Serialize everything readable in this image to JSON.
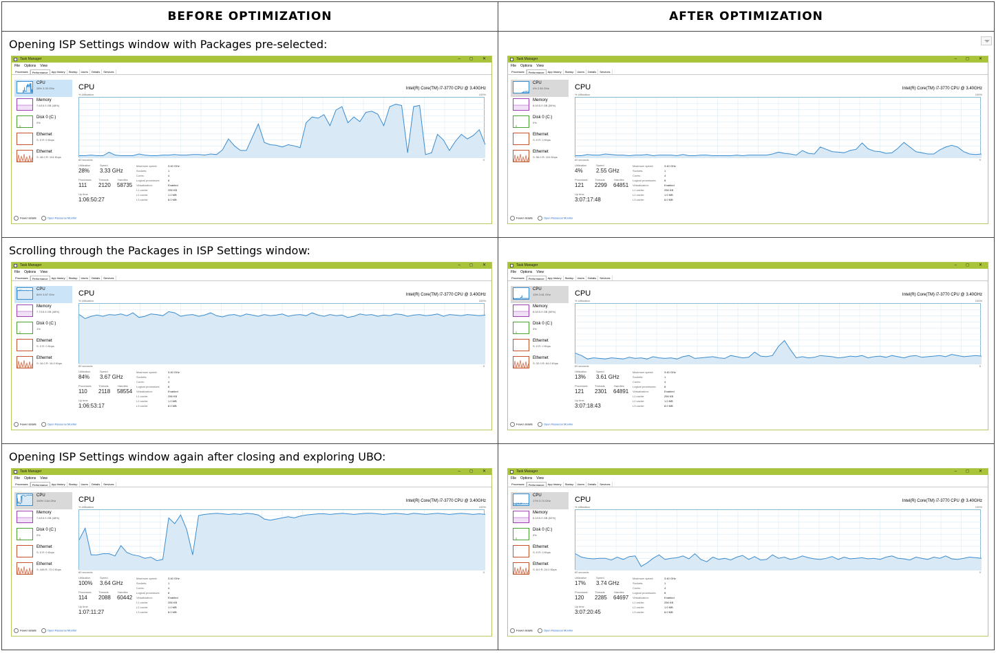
{
  "headers": {
    "before": "BEFORE OPTIMIZATION",
    "after": "AFTER OPTIMIZATION"
  },
  "colors": {
    "titlebar": "#a9c33a",
    "cpu_line": "#3a8cd0",
    "cpu_fill": "#d9e9f5",
    "memory": "#9b3fb5",
    "disk": "#4aa12f",
    "ethernet": "#c2542c"
  },
  "taskmanager": {
    "title": "Task Manager",
    "window_controls": [
      "–",
      "◻",
      "✕"
    ],
    "menu": [
      "File",
      "Options",
      "View"
    ],
    "tabs": [
      "Processes",
      "Performance",
      "App history",
      "Startup",
      "Users",
      "Details",
      "Services"
    ],
    "cpu_heading": "CPU",
    "processor": "Intel(R) Core(TM) i7-3770 CPU @ 3.40GHz",
    "util_label": "% Utilization",
    "pct_max": "100%",
    "time_label": "60 seconds",
    "zero": "0",
    "side_names": {
      "cpu": "CPU",
      "memory": "Memory",
      "disk": "Disk 0 (C:)",
      "eth1": "Ethernet",
      "eth2": "Ethernet"
    },
    "labels": {
      "utilization": "Utilization",
      "speed": "Speed",
      "processes": "Processes",
      "threads": "Threads",
      "handles": "Handles",
      "uptime": "Up time"
    },
    "specs": [
      {
        "k": "Maximum speed:",
        "v": "3.40 GHz"
      },
      {
        "k": "Sockets:",
        "v": "1"
      },
      {
        "k": "Cores:",
        "v": "4"
      },
      {
        "k": "Logical processors:",
        "v": "8"
      },
      {
        "k": "Virtualization:",
        "v": "Enabled"
      },
      {
        "k": "L1 cache:",
        "v": "256 KB"
      },
      {
        "k": "L2 cache:",
        "v": "1.0 MB"
      },
      {
        "k": "L3 cache:",
        "v": "8.0 MB"
      }
    ],
    "fewer_details": "Fewer details",
    "resource_monitor": "Open Resource Monitor"
  },
  "rows": [
    {
      "caption": "Opening ISP Settings window with Packages pre-selected:",
      "before": {
        "sidebar": {
          "cpu": "28% 3.33 GHz",
          "memory": "7.6/15.9 GB (48%)",
          "disk": "0%",
          "eth1": "S: 0 R: 0 Kbps",
          "eth2": "S: 48.0 R: 104 Kbps"
        },
        "stats": {
          "utilization": "28%",
          "speed": "3.33 GHz",
          "processes": "111",
          "threads": "2120",
          "handles": "58735",
          "uptime": "1:06:50:27"
        },
        "cpu_history": [
          3,
          3,
          4,
          3,
          3,
          9,
          4,
          3,
          3,
          3,
          6,
          4,
          3,
          3,
          4,
          4,
          5,
          4,
          4,
          5,
          5,
          4,
          6,
          5,
          13,
          32,
          20,
          12,
          12,
          35,
          58,
          26,
          22,
          21,
          18,
          22,
          20,
          17,
          60,
          70,
          68,
          74,
          55,
          82,
          88,
          60,
          70,
          62,
          78,
          80,
          75,
          55,
          88,
          92,
          90,
          8,
          88,
          90,
          5,
          8,
          40,
          30,
          12,
          28,
          40,
          32,
          38,
          48,
          22
        ],
        "cpu_sel_style": "blue"
      },
      "after": {
        "sidebar": {
          "cpu": "4% 2.55 GHz",
          "memory": "8.0/15.9 GB (50%)",
          "disk": "0%",
          "eth1": "S: 0 R: 0 Kbps",
          "eth2": "S: 56.0 R: 104 Kbps"
        },
        "stats": {
          "utilization": "4%",
          "speed": "2.55 GHz",
          "processes": "121",
          "threads": "2299",
          "handles": "64851",
          "uptime": "3:07:17:48"
        },
        "cpu_history": [
          3,
          3,
          5,
          4,
          4,
          6,
          5,
          4,
          4,
          3,
          4,
          4,
          5,
          3,
          4,
          4,
          4,
          3,
          5,
          3,
          3,
          4,
          4,
          3,
          3,
          3,
          3,
          4,
          3,
          4,
          4,
          4,
          4,
          6,
          9,
          7,
          6,
          4,
          12,
          7,
          6,
          18,
          14,
          10,
          9,
          8,
          12,
          14,
          25,
          15,
          11,
          10,
          7,
          8,
          16,
          26,
          18,
          10,
          8,
          6,
          6,
          13,
          18,
          21,
          18,
          10,
          6,
          5,
          6
        ],
        "cpu_sel_style": "grey"
      }
    },
    {
      "caption": "Scrolling through the Packages in ISP Settings window:",
      "before": {
        "sidebar": {
          "cpu": "84% 3.67 GHz",
          "memory": "7.7/15.9 GB (48%)",
          "disk": "1%",
          "eth1": "S: 0 R: 0 Kbps",
          "eth2": "S: 16.0 R: 16.0 Kbps"
        },
        "stats": {
          "utilization": "84%",
          "speed": "3.67 GHz",
          "processes": "110",
          "threads": "2118",
          "handles": "58554",
          "uptime": "1:06:53:17"
        },
        "cpu_history": [
          85,
          78,
          82,
          84,
          82,
          85,
          84,
          86,
          83,
          88,
          80,
          82,
          86,
          85,
          83,
          90,
          88,
          82,
          84,
          85,
          82,
          84,
          88,
          83,
          81,
          84,
          85,
          82,
          86,
          84,
          82,
          85,
          83,
          84,
          86,
          82,
          84,
          85,
          83,
          88,
          84,
          82,
          85,
          83,
          84,
          80,
          82,
          86,
          84,
          85,
          82,
          84,
          83,
          86,
          85,
          82,
          84,
          85,
          83,
          84,
          86,
          82,
          85,
          84,
          83,
          85,
          84,
          83,
          84
        ],
        "cpu_sel_style": "blue"
      },
      "after": {
        "sidebar": {
          "cpu": "13% 3.61 GHz",
          "memory": "8.0/15.9 GB (50%)",
          "disk": "3%",
          "eth1": "S: 0 R: 0 Kbps",
          "eth2": "S: 32.0 R: 64.0 Kbps"
        },
        "stats": {
          "utilization": "13%",
          "speed": "3.61 GHz",
          "processes": "121",
          "threads": "2301",
          "handles": "64891",
          "uptime": "3:07:18:43"
        },
        "cpu_history": [
          18,
          14,
          8,
          10,
          9,
          8,
          10,
          9,
          8,
          11,
          9,
          10,
          8,
          12,
          10,
          9,
          10,
          8,
          12,
          14,
          9,
          10,
          11,
          12,
          10,
          9,
          14,
          12,
          10,
          11,
          20,
          13,
          12,
          14,
          30,
          40,
          24,
          10,
          12,
          10,
          11,
          14,
          13,
          12,
          10,
          11,
          13,
          12,
          14,
          10,
          12,
          13,
          11,
          14,
          12,
          10,
          13,
          14,
          11,
          12,
          13,
          14,
          12,
          16,
          14,
          12,
          13,
          14,
          13
        ],
        "cpu_sel_style": "grey"
      }
    },
    {
      "caption": "Opening ISP Settings window again after closing and exploring UBO:",
      "before": {
        "sidebar": {
          "cpu": "100% 3.64 GHz",
          "memory": "7.6/15.9 GB (48%)",
          "disk": "0%",
          "eth1": "S: 0 R: 0 Kbps",
          "eth2": "S: 448 R: 72.0 Kbps"
        },
        "stats": {
          "utilization": "100%",
          "speed": "3.64 GHz",
          "processes": "114",
          "threads": "2088",
          "handles": "60442",
          "uptime": "1:07:11:27"
        },
        "cpu_history": [
          52,
          72,
          26,
          26,
          28,
          28,
          24,
          42,
          30,
          26,
          24,
          20,
          22,
          16,
          18,
          90,
          80,
          95,
          70,
          26,
          94,
          96,
          97,
          98,
          97,
          96,
          97,
          96,
          98,
          97,
          95,
          88,
          86,
          88,
          90,
          92,
          90,
          93,
          95,
          96,
          97,
          97,
          96,
          97,
          98,
          97,
          96,
          97,
          98,
          98,
          97,
          96,
          97,
          98,
          97,
          96,
          98,
          97,
          96,
          97,
          98,
          97,
          96,
          97,
          98,
          97,
          96,
          97,
          96
        ],
        "cpu_sel_style": "grey"
      },
      "after": {
        "sidebar": {
          "cpu": "17% 3.74 GHz",
          "memory": "8.2/15.9 GB (52%)",
          "disk": "3%",
          "eth1": "S: 0 R: 0 Kbps",
          "eth2": "S: 8.0 R: 24.0 Kbps"
        },
        "stats": {
          "utilization": "17%",
          "speed": "3.74 GHz",
          "processes": "120",
          "threads": "2285",
          "handles": "64697",
          "uptime": "3:07:20:45"
        },
        "cpu_history": [
          28,
          22,
          20,
          19,
          20,
          20,
          17,
          22,
          18,
          23,
          24,
          6,
          12,
          20,
          26,
          18,
          20,
          21,
          24,
          19,
          28,
          18,
          14,
          22,
          18,
          20,
          17,
          22,
          25,
          18,
          23,
          17,
          18,
          26,
          20,
          22,
          18,
          20,
          24,
          21,
          19,
          18,
          20,
          23,
          18,
          22,
          19,
          20,
          21,
          19,
          20,
          18,
          22,
          24,
          20,
          19,
          17,
          22,
          20,
          18,
          22,
          20,
          24,
          19,
          18,
          20,
          22,
          21,
          20
        ],
        "cpu_sel_style": "blue-grey"
      }
    }
  ]
}
